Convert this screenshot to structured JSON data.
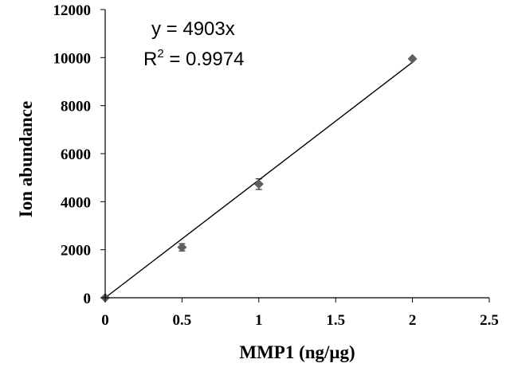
{
  "chart_data": {
    "type": "scatter",
    "title": "",
    "xlabel": "MMP1 (ng/μg)",
    "ylabel": "Ion abundance",
    "xlim": [
      0,
      2.5
    ],
    "ylim": [
      0,
      12000
    ],
    "x_ticks": [
      "0",
      "0.5",
      "1",
      "1.5",
      "2",
      "2.5"
    ],
    "y_ticks": [
      "0",
      "2000",
      "4000",
      "6000",
      "8000",
      "10000",
      "12000"
    ],
    "grid": false,
    "legend": "none",
    "points": [
      {
        "x": 0,
        "y": 0,
        "err": 0
      },
      {
        "x": 0.5,
        "y": 2100,
        "err": 150
      },
      {
        "x": 1,
        "y": 4730,
        "err": 220
      },
      {
        "x": 2,
        "y": 9950,
        "err": 0
      }
    ],
    "trendline": {
      "type": "linear",
      "slope": 4903,
      "intercept": 0,
      "x_range": [
        0,
        2
      ]
    },
    "annotations": {
      "equation": "y = 4903x",
      "r2_base": "R",
      "r2_exp": "2",
      "r2_rest": " = 0.9974"
    },
    "marker_color": "#606060",
    "line_color": "#000000"
  }
}
